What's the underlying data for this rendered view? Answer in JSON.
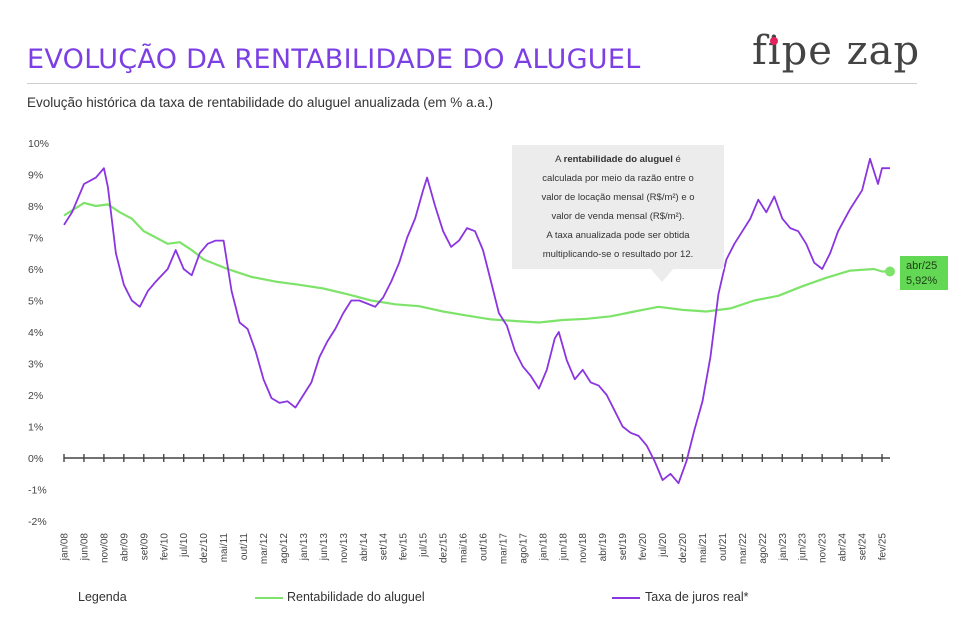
{
  "header": {
    "title": "EVOLUÇÃO DA RENTABILIDADE DO ALUGUEL",
    "logo": "fipe zap",
    "subtitle": "Evolução histórica da taxa de rentabilidade do aluguel anualizada (em % a.a.)"
  },
  "note": {
    "pre": "A ",
    "bold": "rentabilidade do aluguel",
    "post": " é",
    "lines": [
      "calculada por meio da razão entre o",
      "valor de locação mensal (R$/m²) e o",
      "valor de venda mensal (R$/m²).",
      "A taxa anualizada pode ser obtida",
      "multiplicando-se  o resultado por 12."
    ]
  },
  "callout": {
    "date": "abr/25",
    "value": "5,92%"
  },
  "legend": {
    "title": "Legenda",
    "rent": "Rentabilidade do aluguel",
    "rate": "Taxa de juros real*"
  },
  "colors": {
    "rent": "#7ee36a",
    "rate": "#8a35e0",
    "title": "#7b3fe4",
    "callout": "#63d855",
    "note_bg": "#ececec"
  },
  "chart_data": {
    "type": "line",
    "ylim": [
      -2,
      10
    ],
    "y_ticks": [
      "10%",
      "9%",
      "8%",
      "7%",
      "6%",
      "5%",
      "4%",
      "3%",
      "2%",
      "1%",
      "0%",
      "-1%",
      "-2%"
    ],
    "x_range": [
      "jan/08",
      "abr/25"
    ],
    "x_ticks": [
      "jan/08",
      "jun/08",
      "nov/08",
      "abr/09",
      "set/09",
      "fev/10",
      "jul/10",
      "dez/10",
      "mai/11",
      "out/11",
      "mar/12",
      "ago/12",
      "jan/13",
      "jun/13",
      "nov/13",
      "abr/14",
      "set/14",
      "fev/15",
      "jul/15",
      "dez/15",
      "mai/16",
      "out/16",
      "mar/17",
      "ago/17",
      "jan/18",
      "jun/18",
      "nov/18",
      "abr/19",
      "set/19",
      "fev/20",
      "jul/20",
      "dez/20",
      "mai/21",
      "out/21",
      "mar/22",
      "ago/22",
      "jan/23",
      "jun/23",
      "nov/23",
      "abr/24",
      "set/24",
      "fev/25"
    ],
    "series": [
      {
        "name": "Rentabilidade do aluguel",
        "points": [
          [
            "jan/08",
            7.7
          ],
          [
            "jun/08",
            8.1
          ],
          [
            "set/08",
            8.0
          ],
          [
            "dez/08",
            8.05
          ],
          [
            "mar/09",
            7.8
          ],
          [
            "jun/09",
            7.6
          ],
          [
            "set/09",
            7.2
          ],
          [
            "dez/09",
            7.0
          ],
          [
            "mar/10",
            6.8
          ],
          [
            "jun/10",
            6.85
          ],
          [
            "set/10",
            6.6
          ],
          [
            "dez/10",
            6.3
          ],
          [
            "jun/11",
            6.0
          ],
          [
            "dez/11",
            5.75
          ],
          [
            "jun/12",
            5.6
          ],
          [
            "dez/12",
            5.5
          ],
          [
            "jun/13",
            5.38
          ],
          [
            "dez/13",
            5.2
          ],
          [
            "jun/14",
            5.0
          ],
          [
            "dez/14",
            4.88
          ],
          [
            "jun/15",
            4.82
          ],
          [
            "dez/15",
            4.65
          ],
          [
            "jun/16",
            4.52
          ],
          [
            "dez/16",
            4.4
          ],
          [
            "jun/17",
            4.35
          ],
          [
            "dez/17",
            4.3
          ],
          [
            "jun/18",
            4.38
          ],
          [
            "dez/18",
            4.42
          ],
          [
            "jun/19",
            4.5
          ],
          [
            "dez/19",
            4.65
          ],
          [
            "jun/20",
            4.8
          ],
          [
            "dez/20",
            4.7
          ],
          [
            "jun/21",
            4.65
          ],
          [
            "dez/21",
            4.75
          ],
          [
            "jun/22",
            5.0
          ],
          [
            "dez/22",
            5.15
          ],
          [
            "jun/23",
            5.45
          ],
          [
            "dez/23",
            5.72
          ],
          [
            "jun/24",
            5.95
          ],
          [
            "dez/24",
            6.0
          ],
          [
            "fev/25",
            5.92
          ],
          [
            "abr/25",
            5.92
          ]
        ]
      },
      {
        "name": "Taxa de juros real*",
        "points": [
          [
            "jan/08",
            7.4
          ],
          [
            "mar/08",
            7.8
          ],
          [
            "jun/08",
            8.7
          ],
          [
            "set/08",
            8.9
          ],
          [
            "nov/08",
            9.2
          ],
          [
            "dez/08",
            8.6
          ],
          [
            "fev/09",
            6.5
          ],
          [
            "abr/09",
            5.5
          ],
          [
            "jun/09",
            5.0
          ],
          [
            "ago/09",
            4.8
          ],
          [
            "out/09",
            5.3
          ],
          [
            "dez/09",
            5.6
          ],
          [
            "mar/10",
            6.0
          ],
          [
            "mai/10",
            6.6
          ],
          [
            "jul/10",
            6.0
          ],
          [
            "set/10",
            5.8
          ],
          [
            "nov/10",
            6.5
          ],
          [
            "jan/11",
            6.8
          ],
          [
            "mar/11",
            6.9
          ],
          [
            "mai/11",
            6.9
          ],
          [
            "jul/11",
            5.3
          ],
          [
            "set/11",
            4.3
          ],
          [
            "nov/11",
            4.1
          ],
          [
            "jan/12",
            3.4
          ],
          [
            "mar/12",
            2.5
          ],
          [
            "mai/12",
            1.9
          ],
          [
            "jul/12",
            1.75
          ],
          [
            "set/12",
            1.8
          ],
          [
            "nov/12",
            1.6
          ],
          [
            "jan/13",
            2.0
          ],
          [
            "mar/13",
            2.4
          ],
          [
            "mai/13",
            3.2
          ],
          [
            "jul/13",
            3.7
          ],
          [
            "set/13",
            4.1
          ],
          [
            "nov/13",
            4.6
          ],
          [
            "jan/14",
            5.0
          ],
          [
            "mar/14",
            5.0
          ],
          [
            "mai/14",
            4.9
          ],
          [
            "jul/14",
            4.8
          ],
          [
            "set/14",
            5.1
          ],
          [
            "nov/14",
            5.6
          ],
          [
            "jan/15",
            6.2
          ],
          [
            "mar/15",
            7.0
          ],
          [
            "mai/15",
            7.6
          ],
          [
            "jul/15",
            8.5
          ],
          [
            "ago/15",
            8.9
          ],
          [
            "out/15",
            8.0
          ],
          [
            "dez/15",
            7.2
          ],
          [
            "fev/16",
            6.7
          ],
          [
            "abr/16",
            6.9
          ],
          [
            "jun/16",
            7.3
          ],
          [
            "ago/16",
            7.2
          ],
          [
            "out/16",
            6.6
          ],
          [
            "dez/16",
            5.6
          ],
          [
            "fev/17",
            4.6
          ],
          [
            "abr/17",
            4.2
          ],
          [
            "jun/17",
            3.4
          ],
          [
            "ago/17",
            2.9
          ],
          [
            "out/17",
            2.6
          ],
          [
            "dez/17",
            2.2
          ],
          [
            "fev/18",
            2.8
          ],
          [
            "abr/18",
            3.8
          ],
          [
            "mai/18",
            4.0
          ],
          [
            "jul/18",
            3.1
          ],
          [
            "set/18",
            2.5
          ],
          [
            "nov/18",
            2.8
          ],
          [
            "jan/19",
            2.4
          ],
          [
            "mar/19",
            2.3
          ],
          [
            "mai/19",
            2.0
          ],
          [
            "jul/19",
            1.5
          ],
          [
            "set/19",
            1.0
          ],
          [
            "nov/19",
            0.8
          ],
          [
            "jan/20",
            0.7
          ],
          [
            "mar/20",
            0.4
          ],
          [
            "mai/20",
            -0.1
          ],
          [
            "jul/20",
            -0.7
          ],
          [
            "set/20",
            -0.5
          ],
          [
            "nov/20",
            -0.8
          ],
          [
            "jan/21",
            -0.1
          ],
          [
            "mar/21",
            0.9
          ],
          [
            "mai/21",
            1.8
          ],
          [
            "jul/21",
            3.2
          ],
          [
            "set/21",
            5.2
          ],
          [
            "nov/21",
            6.3
          ],
          [
            "jan/22",
            6.8
          ],
          [
            "mar/22",
            7.2
          ],
          [
            "mai/22",
            7.6
          ],
          [
            "jul/22",
            8.2
          ],
          [
            "set/22",
            7.8
          ],
          [
            "nov/22",
            8.3
          ],
          [
            "jan/23",
            7.6
          ],
          [
            "mar/23",
            7.3
          ],
          [
            "mai/23",
            7.2
          ],
          [
            "jul/23",
            6.8
          ],
          [
            "set/23",
            6.2
          ],
          [
            "nov/23",
            6.0
          ],
          [
            "jan/24",
            6.5
          ],
          [
            "mar/24",
            7.2
          ],
          [
            "jun/24",
            7.9
          ],
          [
            "set/24",
            8.5
          ],
          [
            "nov/24",
            9.5
          ],
          [
            "jan/25",
            8.7
          ],
          [
            "fev/25",
            9.2
          ],
          [
            "abr/25",
            9.2
          ]
        ]
      }
    ]
  }
}
